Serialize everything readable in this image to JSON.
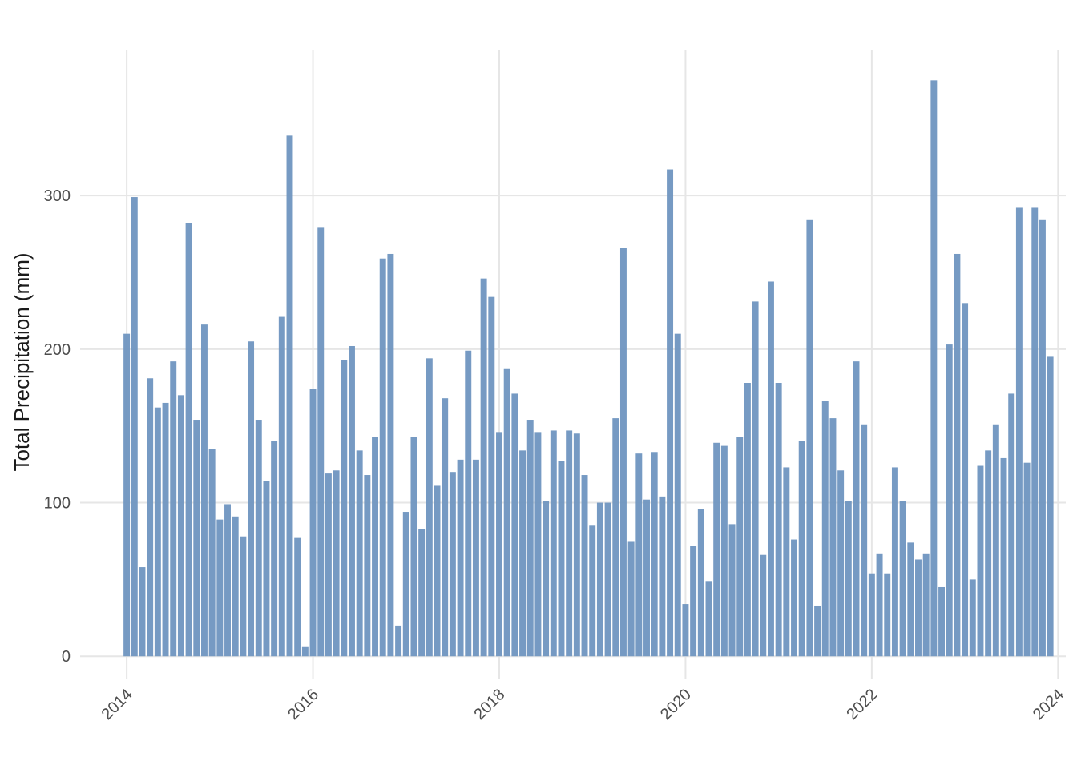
{
  "chart_data": {
    "type": "bar",
    "ylabel": "Total Precipitation (mm)",
    "xlabel": "",
    "ylim": [
      -15,
      395
    ],
    "xlim": [
      "2013-07",
      "2024-02"
    ],
    "y_ticks": [
      0,
      100,
      200,
      300
    ],
    "x_ticks": [
      "2014",
      "2016",
      "2018",
      "2020",
      "2022",
      "2024"
    ],
    "grid": true,
    "bar_color": "#6f95c0",
    "start_month": "2014-01",
    "values": [
      210,
      299,
      58,
      181,
      162,
      165,
      192,
      170,
      282,
      154,
      216,
      135,
      89,
      99,
      91,
      78,
      205,
      154,
      114,
      140,
      221,
      339,
      77,
      6,
      174,
      279,
      119,
      121,
      193,
      202,
      134,
      118,
      143,
      259,
      262,
      20,
      94,
      143,
      83,
      194,
      111,
      168,
      120,
      128,
      199,
      128,
      246,
      234,
      146,
      187,
      171,
      134,
      154,
      146,
      101,
      147,
      127,
      147,
      145,
      118,
      85,
      100,
      100,
      155,
      266,
      75,
      132,
      102,
      133,
      104,
      317,
      210,
      34,
      72,
      96,
      49,
      139,
      137,
      86,
      143,
      178,
      231,
      66,
      244,
      178,
      123,
      76,
      140,
      284,
      33,
      166,
      155,
      121,
      101,
      192,
      151,
      54,
      67,
      54,
      123,
      101,
      74,
      63,
      67,
      375,
      45,
      203,
      262,
      230,
      50,
      124,
      134,
      151,
      129,
      171,
      292,
      126,
      292,
      284,
      195
    ]
  }
}
